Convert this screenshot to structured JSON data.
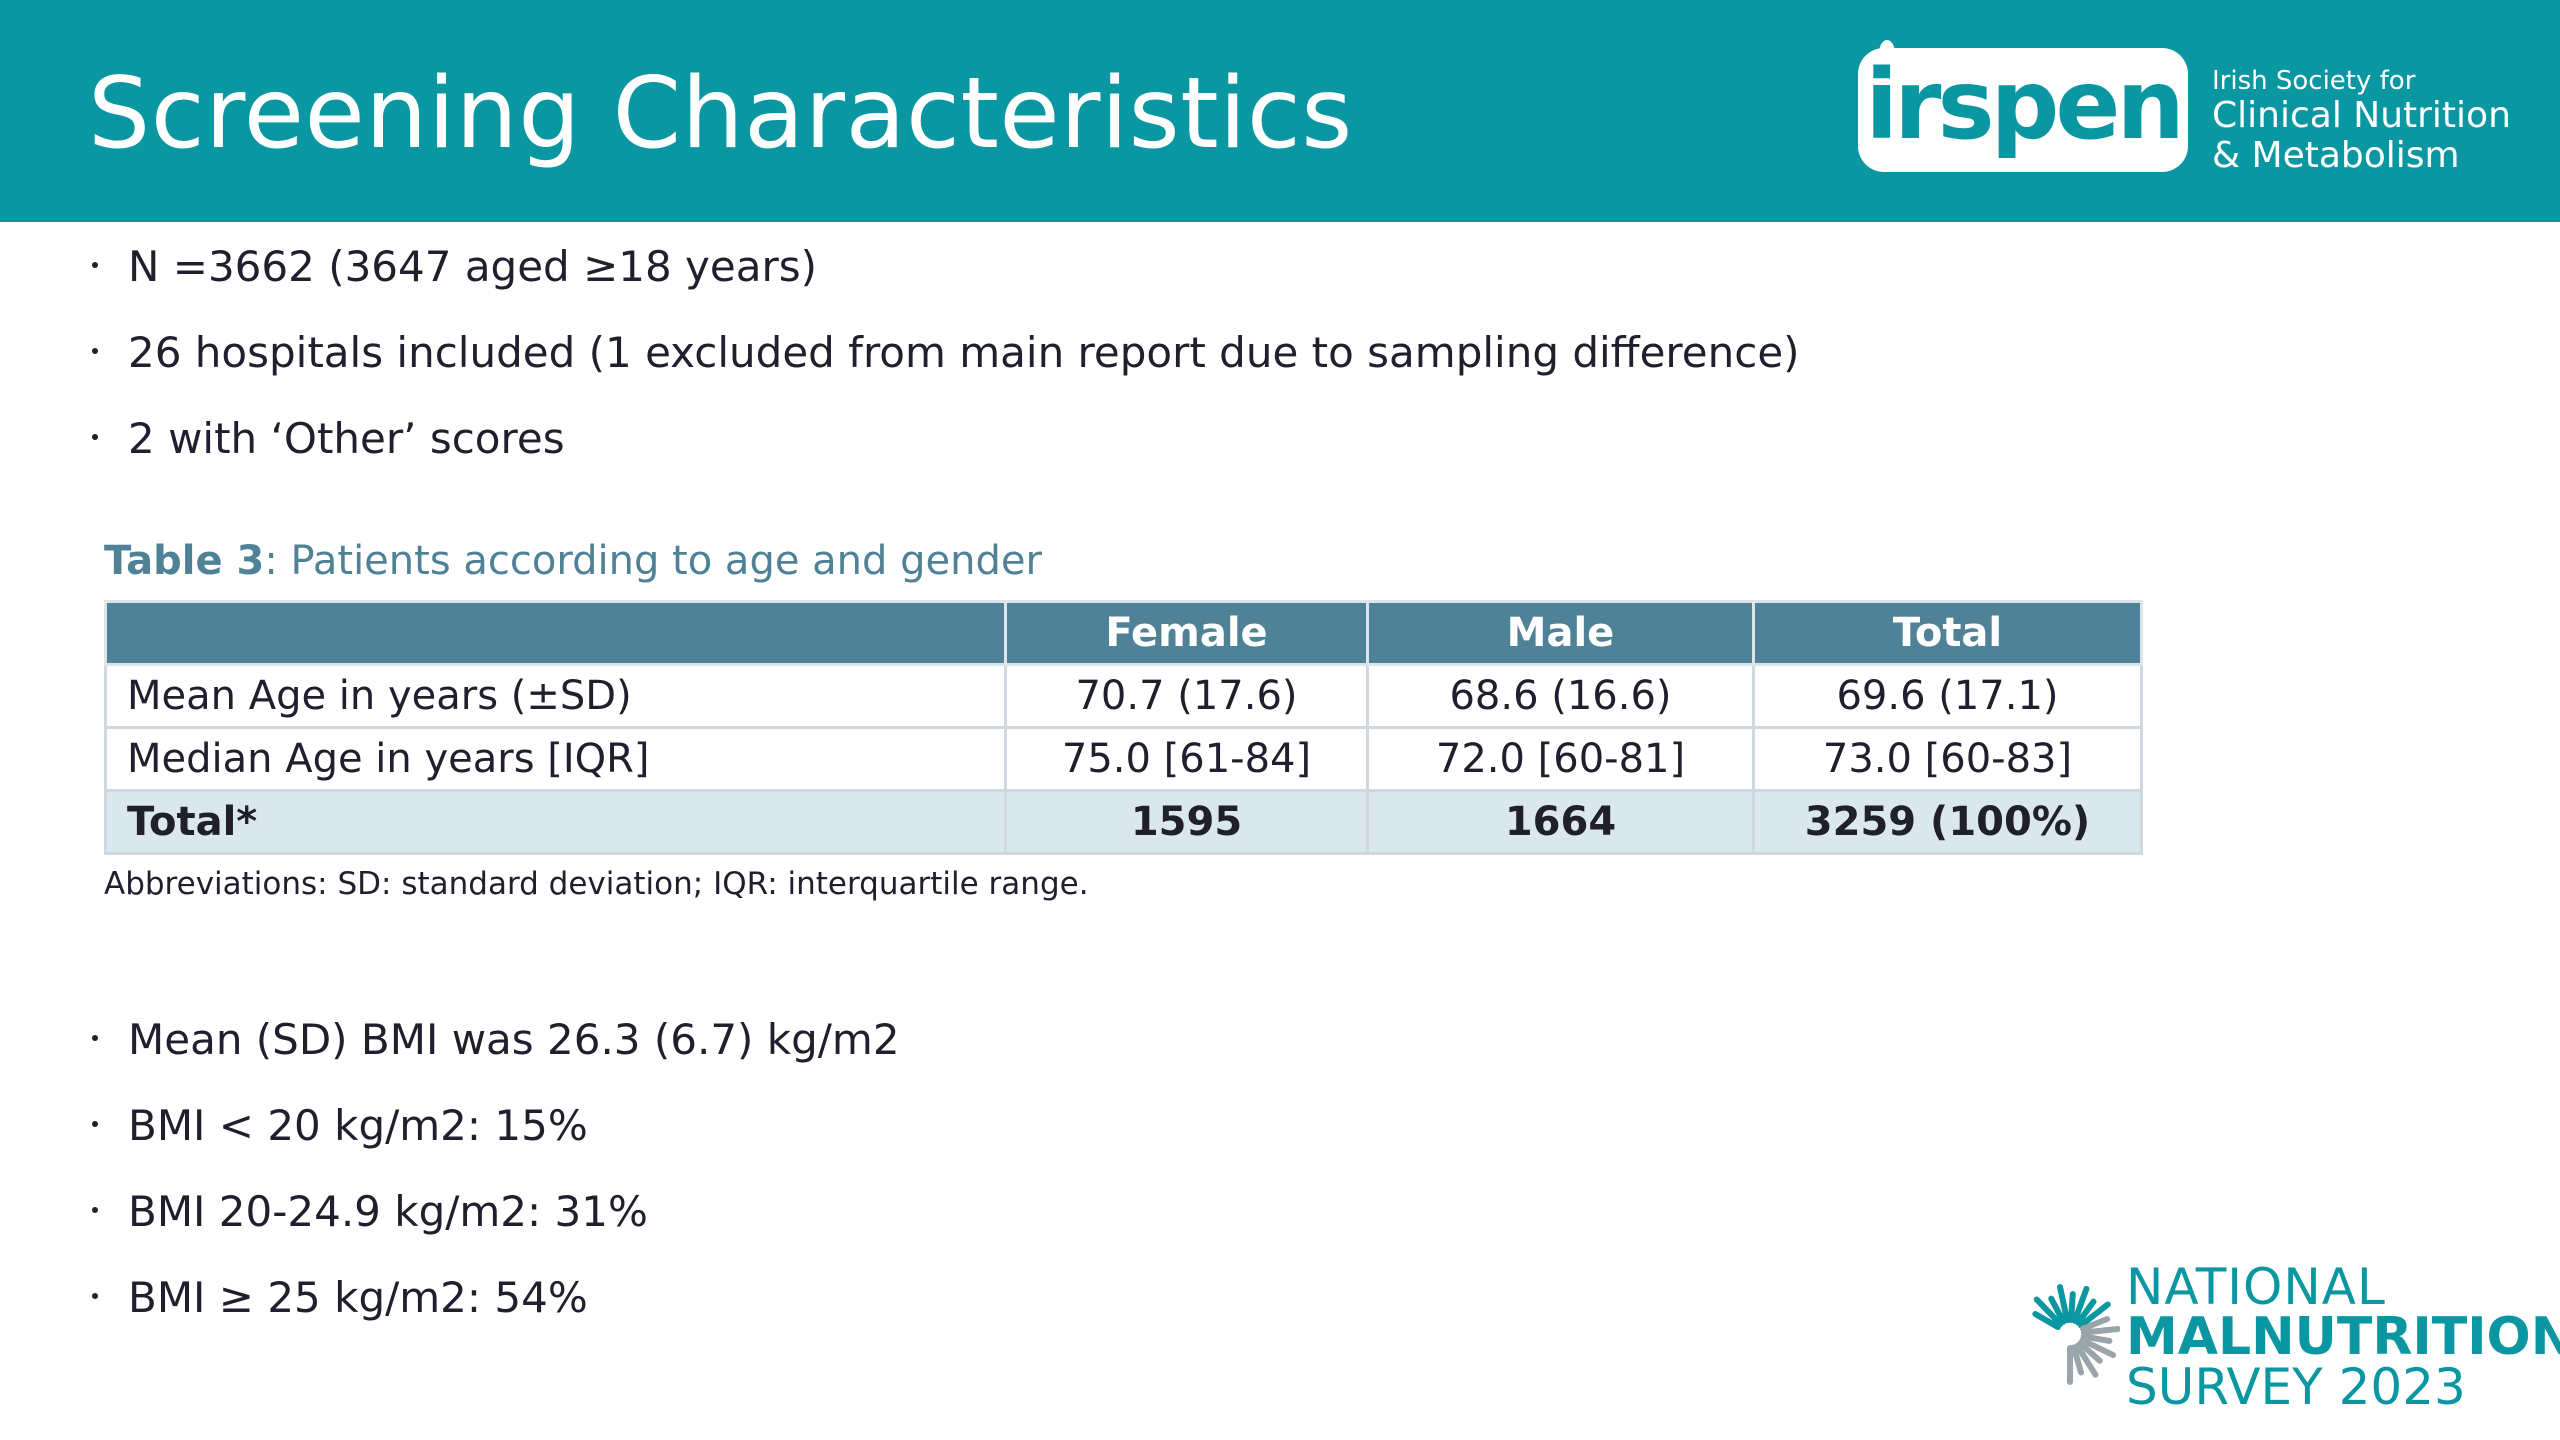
{
  "header": {
    "title": "Screening Characteristics",
    "logo": {
      "wordmark": "irspen",
      "line1": "Irish Society for",
      "line2": "Clinical Nutrition",
      "line3": "& Metabolism"
    }
  },
  "bullets_top": [
    "N =3662 (3647 aged ≥18 years)",
    "26 hospitals included (1 excluded from main report due to sampling difference)",
    "2 with ‘Other’ scores"
  ],
  "table": {
    "caption_bold": "Table 3",
    "caption_rest": ": Patients according to age and gender",
    "headers": [
      "",
      "Female",
      "Male",
      "Total"
    ],
    "rows": [
      [
        "Mean Age in years (±SD)",
        "70.7 (17.6)",
        "68.6 (16.6)",
        "69.6 (17.1)"
      ],
      [
        "Median Age in years [IQR]",
        "75.0 [61-84]",
        "72.0 [60-81]",
        "73.0 [60-83]"
      ]
    ],
    "total_row": [
      "Total*",
      "1595",
      "1664",
      "3259 (100%)"
    ],
    "abbreviations": "Abbreviations:  SD: standard deviation; IQR: interquartile range."
  },
  "bullets_bottom": [
    "Mean (SD) BMI was 26.3 (6.7) kg/m2",
    "BMI < 20 kg/m2: 15%",
    "BMI 20-24.9 kg/m2: 31%",
    "BMI ≥ 25 kg/m2: 54%"
  ],
  "survey_logo": {
    "line1": "NATIONAL",
    "line2": "MALNUTRITION",
    "line3": "SURVEY 2023"
  },
  "colors": {
    "brand_teal": "#0a97a2",
    "table_header": "#4f8197",
    "total_row_bg": "#dbe7ef"
  }
}
